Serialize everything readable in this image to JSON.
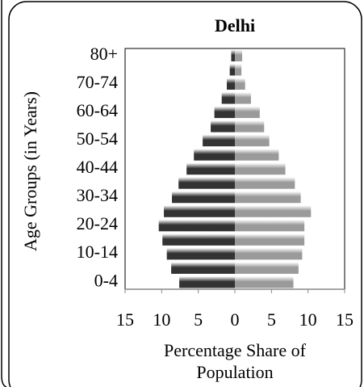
{
  "chart_data": {
    "type": "pyramid",
    "title": "Delhi",
    "y_label": "Age Groups (in Years)",
    "x_label": "Percentage Share of Population",
    "categories": [
      "0-4",
      null,
      "10-14",
      null,
      "20-24",
      null,
      "30-34",
      null,
      "40-44",
      null,
      "50-54",
      null,
      "60-64",
      null,
      "70-74",
      null,
      "80+"
    ],
    "series": [
      {
        "color": "#333333",
        "values": [
          7.6,
          8.7,
          9.3,
          9.9,
          10.4,
          9.7,
          8.6,
          7.7,
          6.6,
          5.6,
          4.4,
          3.3,
          2.8,
          1.8,
          1.1,
          0.7,
          0.5
        ]
      },
      {
        "color": "#9a9a9a",
        "values": [
          8.0,
          8.7,
          9.2,
          9.5,
          9.5,
          10.4,
          9.0,
          8.2,
          6.9,
          6.0,
          4.7,
          4.0,
          3.4,
          2.2,
          1.4,
          0.9,
          1.0
        ]
      }
    ],
    "xlim": [
      -15,
      15
    ],
    "xticks": [
      {
        "value": -15,
        "label": "15"
      },
      {
        "value": -10,
        "label": "10"
      },
      {
        "value": -5,
        "label": "5"
      },
      0,
      5,
      10,
      15
    ]
  }
}
